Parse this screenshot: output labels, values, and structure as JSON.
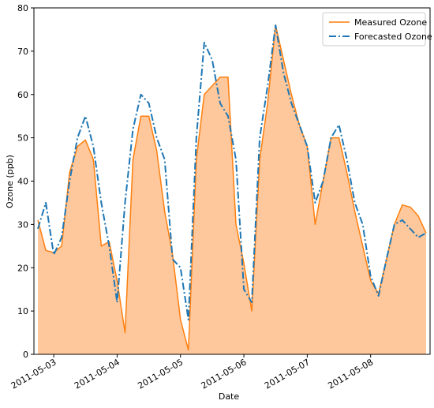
{
  "chart_data": {
    "type": "line",
    "xlabel": "Date",
    "ylabel": "Ozone (ppb)",
    "x": [
      "2011-05-02 18:00",
      "2011-05-02 21:00",
      "2011-05-03 00:00",
      "2011-05-03 03:00",
      "2011-05-03 06:00",
      "2011-05-03 09:00",
      "2011-05-03 12:00",
      "2011-05-03 15:00",
      "2011-05-03 18:00",
      "2011-05-03 21:00",
      "2011-05-04 00:00",
      "2011-05-04 03:00",
      "2011-05-04 06:00",
      "2011-05-04 09:00",
      "2011-05-04 12:00",
      "2011-05-04 15:00",
      "2011-05-04 18:00",
      "2011-05-04 21:00",
      "2011-05-05 00:00",
      "2011-05-05 03:00",
      "2011-05-05 06:00",
      "2011-05-05 09:00",
      "2011-05-05 12:00",
      "2011-05-05 15:00",
      "2011-05-05 18:00",
      "2011-05-05 21:00",
      "2011-05-06 00:00",
      "2011-05-06 03:00",
      "2011-05-06 06:00",
      "2011-05-06 09:00",
      "2011-05-06 12:00",
      "2011-05-06 15:00",
      "2011-05-06 18:00",
      "2011-05-06 21:00",
      "2011-05-07 00:00",
      "2011-05-07 03:00",
      "2011-05-07 06:00",
      "2011-05-07 09:00",
      "2011-05-07 12:00",
      "2011-05-07 15:00",
      "2011-05-07 18:00",
      "2011-05-07 21:00",
      "2011-05-08 00:00",
      "2011-05-08 03:00",
      "2011-05-08 06:00",
      "2011-05-08 09:00",
      "2011-05-08 12:00",
      "2011-05-08 15:00",
      "2011-05-08 18:00",
      "2011-05-08 21:00"
    ],
    "series": [
      {
        "name": "Measured Ozone",
        "color": "#ff7f0e",
        "fill": "#ffc89c",
        "values": [
          31,
          24,
          23.5,
          25,
          42,
          48,
          49.5,
          45,
          25,
          26,
          17,
          5,
          45,
          55,
          55,
          47,
          33,
          23,
          8,
          1,
          45,
          60,
          62,
          64,
          64,
          30,
          21,
          10,
          45,
          58,
          76,
          68,
          60,
          53,
          48,
          30,
          40,
          50,
          50,
          42,
          33,
          25,
          17,
          14,
          22,
          30,
          34.5,
          34,
          32,
          28
        ]
      },
      {
        "name": "Forecasted Ozone",
        "color": "#1f77b4",
        "values": [
          29,
          35,
          23,
          27,
          40,
          50,
          55,
          48,
          35,
          25,
          12,
          35,
          52,
          60,
          58,
          50,
          45,
          22,
          20,
          8,
          50,
          72,
          68,
          58,
          55,
          45,
          15,
          12,
          50,
          62,
          76,
          65,
          58,
          53,
          48,
          35,
          40,
          50,
          53,
          45,
          35,
          30,
          18,
          13.5,
          22,
          30,
          31,
          29,
          27,
          28
        ]
      }
    ],
    "xlim": [
      "2011-05-02 16:30",
      "2011-05-08 22:30"
    ],
    "xticks": [
      "2011-05-03",
      "2011-05-04",
      "2011-05-05",
      "2011-05-06",
      "2011-05-07",
      "2011-05-08"
    ],
    "ylim": [
      0,
      80
    ],
    "yticks": [
      0,
      10,
      20,
      30,
      40,
      50,
      60,
      70,
      80
    ],
    "legend": "upper right"
  }
}
